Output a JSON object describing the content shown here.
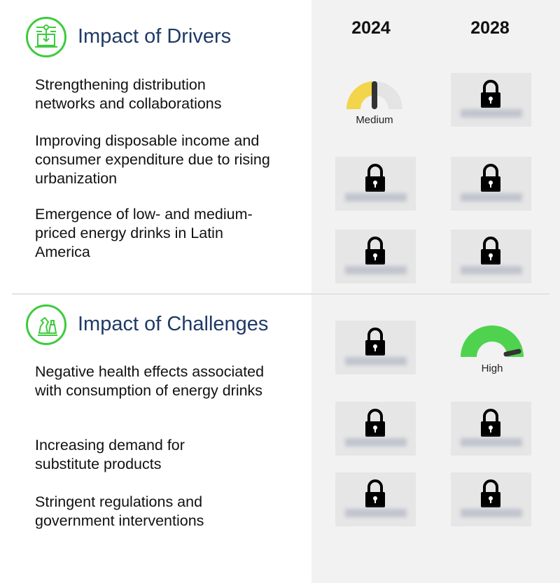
{
  "years": [
    "2024",
    "2028"
  ],
  "drivers": {
    "title": "Impact of Drivers",
    "icon": "circuit-laptop-icon",
    "items": [
      {
        "label": "Strengthening distribution networks and collaborations",
        "impact_2024": "Medium",
        "impact_2028": "locked"
      },
      {
        "label": "Improving disposable income and consumer expenditure due to rising urbanization",
        "impact_2024": "locked",
        "impact_2028": "locked"
      },
      {
        "label": "Emergence of low- and medium-priced energy drinks in Latin America",
        "impact_2024": "locked",
        "impact_2028": "locked"
      }
    ]
  },
  "challenges": {
    "title": "Impact of Challenges",
    "icon": "chess-pieces-icon",
    "header_2024": "locked",
    "header_2028": "High",
    "items": [
      {
        "label": "Negative health effects associated with consumption of energy drinks",
        "impact_2024": "locked",
        "impact_2028": "locked"
      },
      {
        "label": "Increasing demand for substitute products",
        "impact_2024": "locked",
        "impact_2028": "locked"
      },
      {
        "label": "Stringent regulations and government interventions"
      }
    ]
  },
  "colors": {
    "accent_title": "#1f3a66",
    "icon_green": "#3ecb3e",
    "medium": "#f2d54a",
    "high": "#4fd34f"
  }
}
